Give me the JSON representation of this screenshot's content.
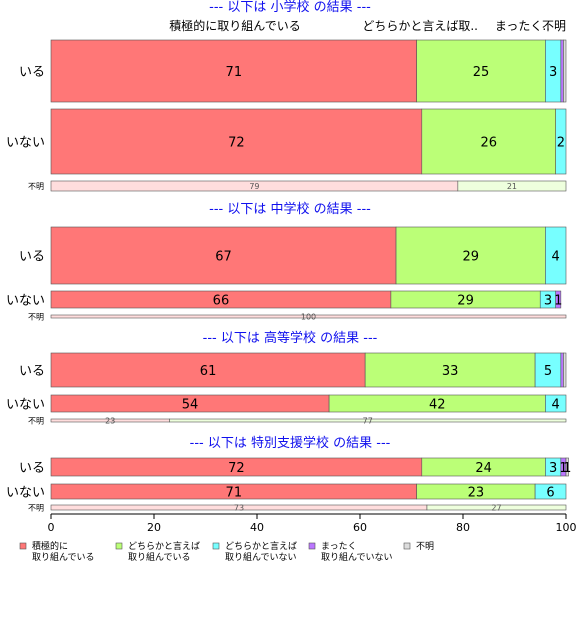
{
  "chart_data": {
    "type": "bar",
    "orientation": "horizontal",
    "stacked": true,
    "xlim": [
      0,
      100
    ],
    "x_ticks": [
      "0",
      "20",
      "40",
      "60",
      "80",
      "100"
    ],
    "grid": false,
    "legend_position": "bottom-left",
    "column_labels": {
      "top": [
        "積極的に取り組んでいる",
        "どちらかと言えば取..",
        "まったく..",
        "不明"
      ]
    },
    "series": [
      {
        "name": "積極的に\n取り組んでいる",
        "color": "#ff7777"
      },
      {
        "name": "どちらかと言えば\n取り組んでいる",
        "color": "#bbff77"
      },
      {
        "name": "どちらかと言えば\n取り組んでいない",
        "color": "#77ffff"
      },
      {
        "name": "まったく\n取り組んでいない",
        "color": "#bb77ff"
      },
      {
        "name": "不明",
        "color": "#dddddd"
      }
    ],
    "groups": [
      {
        "title": "--- 以下は 小学校 の結果 ---",
        "rows": [
          {
            "label": "いる",
            "values": [
              71,
              25,
              3,
              0.5,
              0.5
            ],
            "labels": [
              "71",
              "25",
              "3",
              "",
              ""
            ]
          },
          {
            "label": "いない",
            "values": [
              72,
              26,
              2,
              0,
              0
            ],
            "labels": [
              "72",
              "26",
              "2",
              "",
              ""
            ]
          },
          {
            "label": "不明",
            "values": [
              79,
              21,
              0,
              0,
              0
            ],
            "labels": [
              "79",
              "21",
              "",
              "",
              ""
            ]
          }
        ]
      },
      {
        "title": "--- 以下は 中学校 の結果 ---",
        "rows": [
          {
            "label": "いる",
            "values": [
              67,
              29,
              4,
              0,
              0
            ],
            "labels": [
              "67",
              "29",
              "4",
              "",
              ""
            ]
          },
          {
            "label": "いない",
            "values": [
              66,
              29,
              3,
              1,
              0
            ],
            "labels": [
              "66",
              "29",
              "3",
              "1",
              ""
            ]
          },
          {
            "label": "不明",
            "values": [
              100,
              0,
              0,
              0,
              0
            ],
            "labels": [
              "100",
              "",
              "",
              "",
              ""
            ]
          }
        ]
      },
      {
        "title": "--- 以下は 高等学校 の結果 ---",
        "rows": [
          {
            "label": "いる",
            "values": [
              61,
              33,
              5,
              0.5,
              0.5
            ],
            "labels": [
              "61",
              "33",
              "5",
              "",
              ""
            ]
          },
          {
            "label": "いない",
            "values": [
              54,
              42,
              4,
              0,
              0
            ],
            "labels": [
              "54",
              "42",
              "4",
              "",
              ""
            ]
          },
          {
            "label": "不明",
            "values": [
              23,
              77,
              0,
              0,
              0
            ],
            "labels": [
              "23",
              "77",
              "",
              "",
              ""
            ]
          }
        ]
      },
      {
        "title": "--- 以下は 特別支援学校 の結果 ---",
        "rows": [
          {
            "label": "いる",
            "values": [
              72,
              24,
              3,
              1,
              0.5
            ],
            "labels": [
              "72",
              "24",
              "3",
              "1",
              "1"
            ]
          },
          {
            "label": "いない",
            "values": [
              71,
              23,
              6,
              0,
              0
            ],
            "labels": [
              "71",
              "23",
              "6",
              "",
              ""
            ]
          },
          {
            "label": "不明",
            "values": [
              73,
              27,
              0,
              0,
              0
            ],
            "labels": [
              "73",
              "27",
              "",
              "",
              ""
            ]
          }
        ]
      }
    ]
  }
}
